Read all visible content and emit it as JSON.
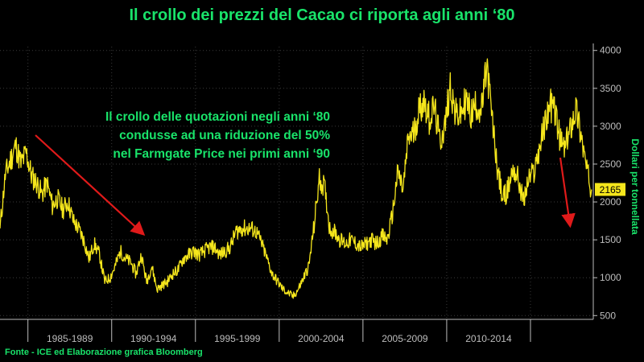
{
  "title": "Il crollo dei prezzi del Cacao ci riporta agli anni ‘80",
  "annotation": "Il crollo delle quotazioni negli anni ‘80\ncondusse ad una riduzione del 50%\nnel Farmgate Price nei primi anni ‘90",
  "source": "Fonte - ICE ed Elaborazione grafica Bloomberg",
  "colors": {
    "background": "#000000",
    "accent": "#19e36a",
    "series": "#f5e61c",
    "arrow": "#e01a1a",
    "grid": "#3a3a3a",
    "axis": "#bdbdbd"
  },
  "chart_data": {
    "type": "line",
    "title": "Il crollo dei prezzi del Cacao ci riporta agli anni ‘80",
    "xlabel": "",
    "ylabel": "Dollari per tonnellata",
    "xlim": [
      1982.0,
      2016.0
    ],
    "ylim": [
      450,
      4050
    ],
    "y_ticks": [
      500,
      1000,
      1500,
      2000,
      2500,
      3000,
      3500,
      4000
    ],
    "x_period_labels": [
      {
        "label": "1985-1989",
        "from": 1983.6,
        "to": 1988.4
      },
      {
        "label": "1990-1994",
        "from": 1988.4,
        "to": 1993.2
      },
      {
        "label": "1995-1999",
        "from": 1993.2,
        "to": 1998.0
      },
      {
        "label": "2000-2004",
        "from": 1998.0,
        "to": 2002.8
      },
      {
        "label": "2005-2009",
        "from": 2002.8,
        "to": 2007.6
      },
      {
        "label": "2010-2014",
        "from": 2007.6,
        "to": 2012.4
      }
    ],
    "grid": true,
    "y_axis_side": "right",
    "last_value_label": "2165",
    "series": [
      {
        "x": [
          1982.0,
          1982.3,
          1982.6,
          1982.9,
          1983.2,
          1983.5,
          1983.8,
          1984.1,
          1984.4,
          1984.7,
          1985.0,
          1985.3,
          1985.6,
          1985.9,
          1986.2,
          1986.5,
          1986.8,
          1987.1,
          1987.4,
          1987.7,
          1988.0,
          1988.3,
          1988.6,
          1988.9,
          1989.2,
          1989.5,
          1989.8,
          1990.1,
          1990.4,
          1990.7,
          1991.0,
          1991.3,
          1991.6,
          1991.9,
          1992.2,
          1992.5,
          1992.8,
          1993.1,
          1993.4,
          1993.7,
          1994.0,
          1994.3,
          1994.6,
          1994.9,
          1995.2,
          1995.5,
          1995.8,
          1996.1,
          1996.4,
          1996.7,
          1997.0,
          1997.3,
          1997.6,
          1997.9,
          1998.2,
          1998.5,
          1998.8,
          1999.1,
          1999.4,
          1999.7,
          2000.0,
          2000.3,
          2000.6,
          2000.9,
          2001.2,
          2001.5,
          2001.8,
          2002.1,
          2002.4,
          2002.7,
          2003.0,
          2003.3,
          2003.6,
          2003.9,
          2004.2,
          2004.5,
          2004.8,
          2005.1,
          2005.4,
          2005.7,
          2006.0,
          2006.3,
          2006.6,
          2006.9,
          2007.2,
          2007.5,
          2007.8,
          2008.1,
          2008.4,
          2008.7,
          2009.0,
          2009.3,
          2009.6,
          2009.9,
          2010.2,
          2010.5,
          2010.8,
          2011.1,
          2011.4,
          2011.7,
          2012.0,
          2012.3,
          2012.6,
          2012.9,
          2013.2,
          2013.5,
          2013.8,
          2014.1,
          2014.4,
          2014.7,
          2015.0,
          2015.3,
          2015.6,
          2015.9
        ],
        "values": [
          1650,
          2350,
          2550,
          2750,
          2500,
          2650,
          2350,
          2250,
          2100,
          2250,
          1950,
          2050,
          1900,
          2000,
          1750,
          1650,
          1500,
          1250,
          1450,
          1300,
          950,
          1000,
          1150,
          1350,
          1250,
          1200,
          1050,
          1300,
          950,
          1150,
          850,
          900,
          950,
          1050,
          1100,
          1250,
          1300,
          1350,
          1300,
          1350,
          1400,
          1400,
          1300,
          1350,
          1400,
          1600,
          1650,
          1650,
          1650,
          1600,
          1450,
          1250,
          1050,
          950,
          850,
          800,
          750,
          850,
          1000,
          1150,
          1700,
          2300,
          2200,
          1650,
          1600,
          1500,
          1450,
          1500,
          1450,
          1400,
          1450,
          1500,
          1450,
          1550,
          1500,
          1850,
          2400,
          2150,
          2850,
          2900,
          3200,
          3350,
          3100,
          3250,
          2800,
          3000,
          3550,
          3150,
          3150,
          3350,
          3150,
          3300,
          3200,
          3800,
          3100,
          2450,
          2050,
          2150,
          2450,
          2300,
          2000,
          2300,
          2400,
          2700,
          3000,
          3300,
          3200,
          2800,
          2700,
          3000,
          3250,
          2900,
          2450,
          2165
        ]
      }
    ]
  }
}
